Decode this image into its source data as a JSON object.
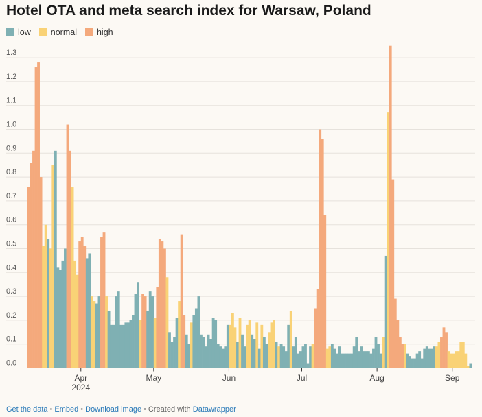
{
  "chart_data": {
    "type": "bar",
    "title": "Hotel OTA and meta search index for Warsaw, Poland",
    "legend": [
      {
        "key": "low",
        "label": "low",
        "color": "#7fb0b3"
      },
      {
        "key": "normal",
        "label": "normal",
        "color": "#f9d276"
      },
      {
        "key": "high",
        "label": "high",
        "color": "#f4a97c"
      }
    ],
    "y_ticks": [
      "0.0",
      "0.1",
      "0.2",
      "0.3",
      "0.4",
      "0.5",
      "0.6",
      "0.7",
      "0.8",
      "0.9",
      "1.0",
      "1.1",
      "1.2",
      "1.3"
    ],
    "ylim": [
      0,
      1.35
    ],
    "x_ticks": [
      {
        "label": "Apr",
        "index": 22,
        "sub": "2024"
      },
      {
        "label": "May",
        "index": 52
      },
      {
        "label": "Jun",
        "index": 83
      },
      {
        "label": "Jul",
        "index": 113
      },
      {
        "label": "Aug",
        "index": 144
      },
      {
        "label": "Sep",
        "index": 175
      }
    ],
    "x_start_date": "2024-03-10",
    "values": [
      0.76,
      0.86,
      0.91,
      1.26,
      1.28,
      0.8,
      0.51,
      0.6,
      0.54,
      0.5,
      0.85,
      0.91,
      0.42,
      0.41,
      0.45,
      0.5,
      1.02,
      0.91,
      0.76,
      0.45,
      0.39,
      0.53,
      0.55,
      0.51,
      0.46,
      0.48,
      0.3,
      0.28,
      0.27,
      0.3,
      0.55,
      0.57,
      0.3,
      0.24,
      0.18,
      0.18,
      0.3,
      0.32,
      0.18,
      0.18,
      0.19,
      0.19,
      0.2,
      0.22,
      0.31,
      0.36,
      0.2,
      0.31,
      0.3,
      0.24,
      0.32,
      0.3,
      0.21,
      0.34,
      0.54,
      0.53,
      0.5,
      0.38,
      0.15,
      0.11,
      0.13,
      0.21,
      0.28,
      0.56,
      0.22,
      0.14,
      0.1,
      0.19,
      0.22,
      0.25,
      0.3,
      0.14,
      0.13,
      0.09,
      0.14,
      0.12,
      0.21,
      0.2,
      0.1,
      0.09,
      0.08,
      0.09,
      0.18,
      0.18,
      0.23,
      0.17,
      0.11,
      0.21,
      0.14,
      0.09,
      0.18,
      0.2,
      0.14,
      0.12,
      0.19,
      0.08,
      0.18,
      0.13,
      0.1,
      0.15,
      0.19,
      0.2,
      0.11,
      0.09,
      0.1,
      0.09,
      0.07,
      0.18,
      0.24,
      0.09,
      0.13,
      0.06,
      0.07,
      0.09,
      0.1,
      0.02,
      0.09,
      0.1,
      0.25,
      0.33,
      1.0,
      0.96,
      0.64,
      0.08,
      0.09,
      0.1,
      0.08,
      0.06,
      0.09,
      0.06,
      0.06,
      0.06,
      0.06,
      0.06,
      0.09,
      0.13,
      0.07,
      0.09,
      0.07,
      0.07,
      0.07,
      0.06,
      0.08,
      0.13,
      0.1,
      0.06,
      0.13,
      0.47,
      1.07,
      1.35,
      0.79,
      0.29,
      0.2,
      0.13,
      0.1,
      0.1,
      0.06,
      0.05,
      0.04,
      0.04,
      0.06,
      0.07,
      0.04,
      0.08,
      0.09,
      0.08,
      0.08,
      0.09,
      0.09,
      0.11,
      0.13,
      0.17,
      0.15,
      0.07,
      0.06,
      0.06,
      0.07,
      0.07,
      0.11,
      0.11,
      0.06,
      0.01,
      0.02
    ],
    "levels": [
      "high",
      "high",
      "high",
      "high",
      "high",
      "high",
      "normal",
      "normal",
      "low",
      "normal",
      "normal",
      "low",
      "low",
      "low",
      "low",
      "low",
      "high",
      "high",
      "normal",
      "normal",
      "normal",
      "high",
      "high",
      "high",
      "low",
      "low",
      "normal",
      "normal",
      "low",
      "low",
      "high",
      "high",
      "normal",
      "low",
      "low",
      "low",
      "low",
      "low",
      "low",
      "low",
      "low",
      "low",
      "low",
      "low",
      "low",
      "low",
      "normal",
      "high",
      "high",
      "low",
      "low",
      "low",
      "normal",
      "high",
      "high",
      "high",
      "high",
      "normal",
      "low",
      "low",
      "low",
      "low",
      "normal",
      "high",
      "high",
      "low",
      "low",
      "normal",
      "low",
      "low",
      "low",
      "low",
      "low",
      "low",
      "low",
      "low",
      "low",
      "low",
      "low",
      "low",
      "low",
      "low",
      "low",
      "normal",
      "normal",
      "normal",
      "low",
      "normal",
      "low",
      "low",
      "normal",
      "normal",
      "low",
      "low",
      "normal",
      "low",
      "normal",
      "low",
      "low",
      "normal",
      "normal",
      "normal",
      "low",
      "normal",
      "low",
      "low",
      "low",
      "low",
      "normal",
      "low",
      "low",
      "low",
      "low",
      "low",
      "low",
      "low",
      "low",
      "normal",
      "high",
      "high",
      "high",
      "high",
      "high",
      "normal",
      "normal",
      "low",
      "low",
      "low",
      "low",
      "low",
      "low",
      "low",
      "low",
      "low",
      "low",
      "low",
      "low",
      "low",
      "low",
      "low",
      "low",
      "low",
      "low",
      "low",
      "low",
      "low",
      "normal",
      "low",
      "normal",
      "high",
      "high",
      "high",
      "high",
      "high",
      "high",
      "normal",
      "low",
      "low",
      "low",
      "low",
      "low",
      "low",
      "low",
      "low",
      "low",
      "low",
      "low",
      "low",
      "normal",
      "normal",
      "high",
      "high",
      "high",
      "normal",
      "normal",
      "normal",
      "normal",
      "normal",
      "normal",
      "normal",
      "normal",
      "normal",
      "low",
      "low"
    ]
  },
  "footer": {
    "get_data": "Get the data",
    "embed": "Embed",
    "download": "Download image",
    "created_with": "Created with",
    "datawrapper": "Datawrapper",
    "separator": "•"
  }
}
